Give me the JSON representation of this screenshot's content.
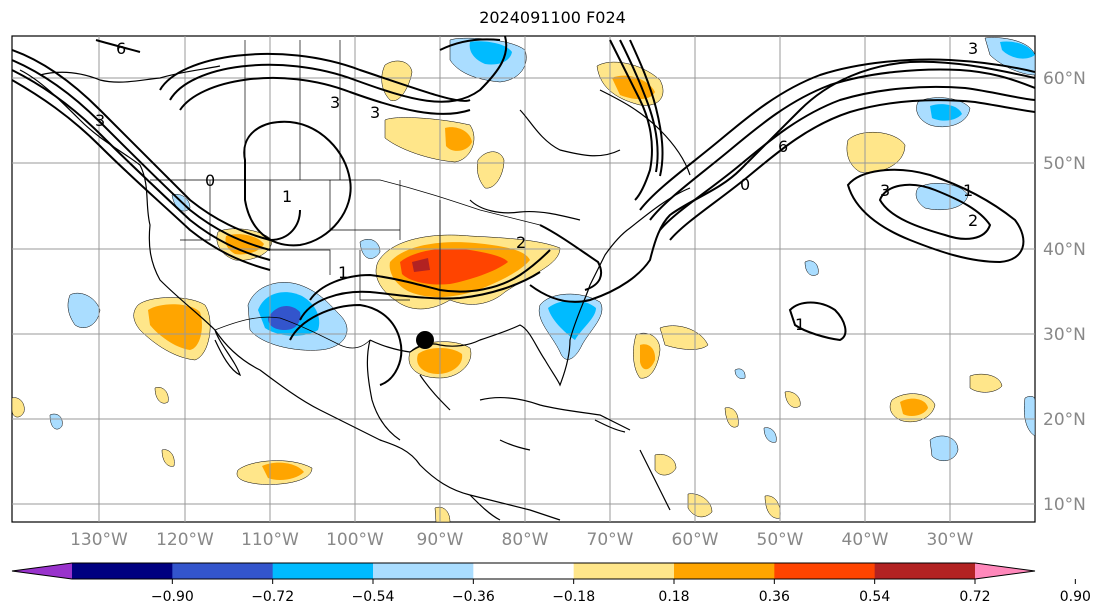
{
  "title": "2024091100 F024",
  "lon_labels": [
    "130°W",
    "120°W",
    "110°W",
    "100°W",
    "90°W",
    "80°W",
    "70°W",
    "60°W",
    "50°W",
    "40°W",
    "30°W"
  ],
  "lat_labels": [
    "60°N",
    "50°N",
    "40°N",
    "30°N",
    "20°N",
    "10°N"
  ],
  "colorbar": {
    "ticks": [
      "−0.90",
      "−0.72",
      "−0.54",
      "−0.36",
      "−0.18",
      "0.18",
      "0.36",
      "0.54",
      "0.72",
      "0.90"
    ],
    "colors": [
      "#9933cc",
      "#000080",
      "#3355cc",
      "#00bbff",
      "#aaddff",
      "#ffffff",
      "#ffe68a",
      "#ffa500",
      "#ff4400",
      "#b22222",
      "#ff88bb"
    ]
  },
  "contour_labels": [
    "6",
    "3",
    "3",
    "1",
    "0",
    "1",
    "2",
    "0",
    "3",
    "6",
    "1",
    "3",
    "1",
    "2",
    "3"
  ],
  "storm_marker": "hurricane-center"
}
